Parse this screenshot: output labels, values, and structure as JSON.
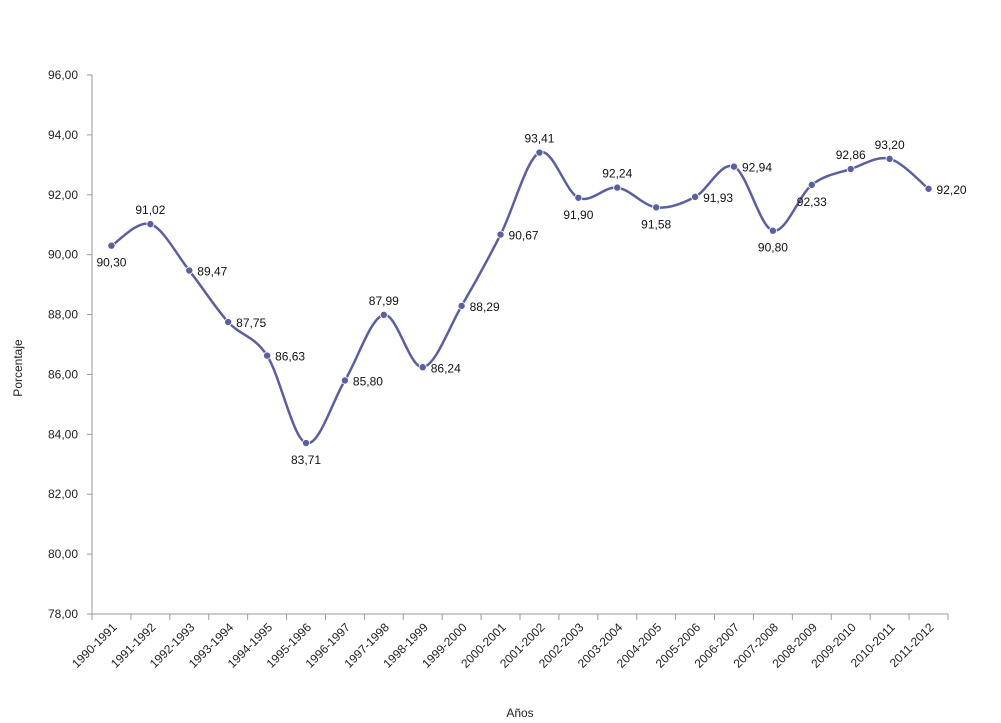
{
  "chart_data": {
    "type": "line",
    "title": "",
    "xlabel": "Años",
    "ylabel": "Porcentaje",
    "ylim": [
      78,
      96
    ],
    "yticks": [
      "78,00",
      "80,00",
      "82,00",
      "84,00",
      "86,00",
      "88,00",
      "90,00",
      "92,00",
      "94,00",
      "96,00"
    ],
    "grid": false,
    "smooth": true,
    "line_color": "#5b5f9e",
    "categories": [
      "1990-1991",
      "1991-1992",
      "1992-1993",
      "1993-1994",
      "1994-1995",
      "1995-1996",
      "1996-1997",
      "1997-1998",
      "1998-1999",
      "1999-2000",
      "2000-2001",
      "2001-2002",
      "2002-2003",
      "2003-2004",
      "2004-2005",
      "2005-2006",
      "2006-2007",
      "2007-2008",
      "2008-2009",
      "2009-2010",
      "2010-2011",
      "2011-2012"
    ],
    "values": [
      90.3,
      91.02,
      89.47,
      87.75,
      86.63,
      83.71,
      85.8,
      87.99,
      86.24,
      88.29,
      90.67,
      93.41,
      91.9,
      92.24,
      91.58,
      91.93,
      92.94,
      90.8,
      92.33,
      92.86,
      93.2,
      92.2
    ],
    "data_labels": [
      "90,30",
      "91,02",
      "89,47",
      "87,75",
      "86,63",
      "83,71",
      "85,80",
      "87,99",
      "86,24",
      "88,29",
      "90,67",
      "93,41",
      "91,90",
      "92,24",
      "91,58",
      "91,93",
      "92,94",
      "90,80",
      "92,33",
      "92,86",
      "93,20",
      "92,20"
    ],
    "label_positions": [
      "below",
      "above",
      "right",
      "right",
      "right",
      "below",
      "right",
      "above",
      "right",
      "right",
      "right",
      "above",
      "below",
      "above",
      "below",
      "right",
      "right",
      "below",
      "below",
      "above",
      "above",
      "right"
    ]
  }
}
